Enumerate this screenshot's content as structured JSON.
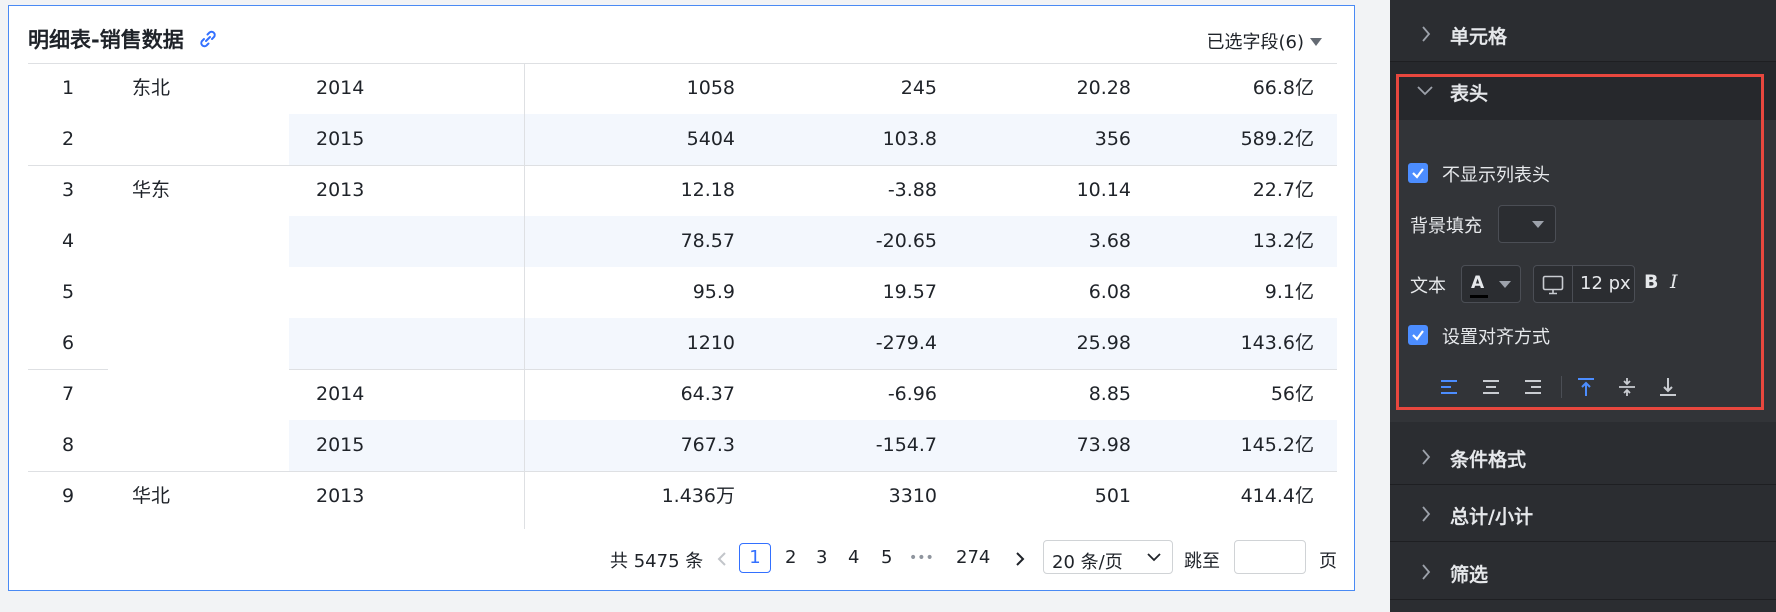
{
  "card": {
    "title": "明细表-销售数据",
    "link_icon": "link-icon",
    "field_select_label": "已选字段(6)"
  },
  "table": {
    "rows": [
      {
        "idx": "1",
        "region": "东北",
        "year": "2014",
        "v1": "1058",
        "v2": "245",
        "v3": "20.28",
        "v4": "66.8亿"
      },
      {
        "idx": "2",
        "region": "",
        "year": "2015",
        "v1": "5404",
        "v2": "103.8",
        "v3": "356",
        "v4": "589.2亿"
      },
      {
        "idx": "3",
        "region": "华东",
        "year": "2013",
        "v1": "12.18",
        "v2": "-3.88",
        "v3": "10.14",
        "v4": "22.7亿"
      },
      {
        "idx": "4",
        "region": "",
        "year": "",
        "v1": "78.57",
        "v2": "-20.65",
        "v3": "3.68",
        "v4": "13.2亿"
      },
      {
        "idx": "5",
        "region": "",
        "year": "",
        "v1": "95.9",
        "v2": "19.57",
        "v3": "6.08",
        "v4": "9.1亿"
      },
      {
        "idx": "6",
        "region": "",
        "year": "",
        "v1": "1210",
        "v2": "-279.4",
        "v3": "25.98",
        "v4": "143.6亿"
      },
      {
        "idx": "7",
        "region": "",
        "year": "2014",
        "v1": "64.37",
        "v2": "-6.96",
        "v3": "8.85",
        "v4": "56亿"
      },
      {
        "idx": "8",
        "region": "",
        "year": "2015",
        "v1": "767.3",
        "v2": "-154.7",
        "v3": "73.98",
        "v4": "145.2亿"
      },
      {
        "idx": "9",
        "region": "华北",
        "year": "2013",
        "v1": "1.436万",
        "v2": "3310",
        "v3": "501",
        "v4": "414.4亿"
      }
    ]
  },
  "pager": {
    "total": "共 5475 条",
    "pages": [
      "1",
      "2",
      "3",
      "4",
      "5"
    ],
    "ellipsis": "•••",
    "last_page": "274",
    "page_size": "20 条/页",
    "jump_label": "跳至",
    "jump_value": "",
    "page_suffix": "页"
  },
  "panel": {
    "sections": {
      "cell": "单元格",
      "header": "表头",
      "conditional_format": "条件格式",
      "total_subtotal": "总计/小计",
      "filter": "筛选"
    },
    "header_options": {
      "hide_column_header": "不显示列表头",
      "hide_column_header_checked": true,
      "background_fill": "背景填充",
      "text": "文本",
      "font_color_glyph": "A",
      "font_size": "12 px",
      "bold_glyph": "B",
      "italic_glyph": "I",
      "set_alignment": "设置对齐方式",
      "set_alignment_checked": true
    },
    "colors": {
      "accent": "#4c8dff",
      "highlight_border": "#e8473e",
      "active_align": "#4c8dff"
    }
  }
}
